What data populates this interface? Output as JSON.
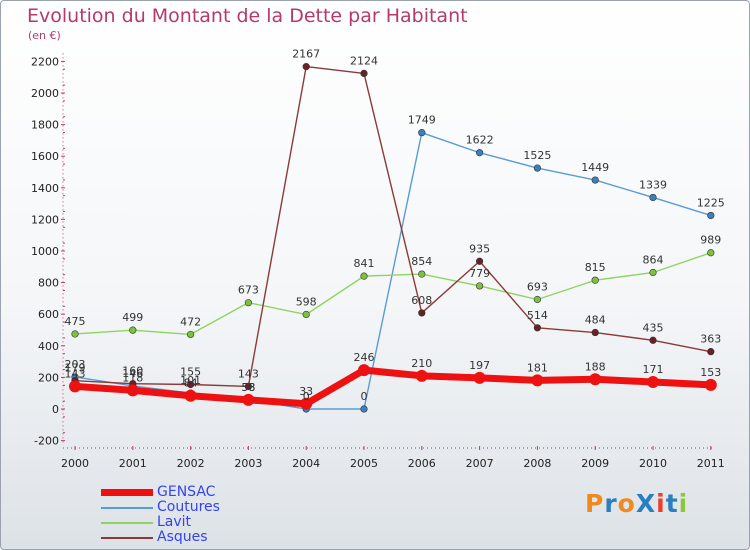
{
  "title": "Evolution du Montant de la Dette par Habitant",
  "subtitle": "(en €)",
  "logo": {
    "text": "ProXiti",
    "colors": [
      "#f08a1e",
      "#2a7fc0",
      "#f08a1e",
      "#2a7fc0",
      "#e8402a",
      "#2a7fc0",
      "#8cc63f"
    ]
  },
  "chart_data": {
    "type": "line",
    "x": [
      "2000",
      "2001",
      "2002",
      "2003",
      "2004",
      "2005",
      "2006",
      "2007",
      "2008",
      "2009",
      "2010",
      "2011"
    ],
    "ylim": [
      -200,
      2200
    ],
    "yticks": [
      -200,
      0,
      200,
      400,
      600,
      800,
      1000,
      1200,
      1400,
      1600,
      1800,
      2000,
      2200
    ],
    "grid": false,
    "legend_position": "bottom-left",
    "series": [
      {
        "name": "Coutures",
        "color": "#5b9bd5",
        "point_color": "#3a7fc0",
        "values": [
          203,
          146,
          101,
          58,
          0,
          0,
          1749,
          1622,
          1525,
          1449,
          1339,
          1225
        ],
        "labels": [
          "203",
          "146",
          "101",
          "58",
          "0",
          "0",
          "1749",
          "1622",
          "1525",
          "1449",
          "1339",
          "1225"
        ]
      },
      {
        "name": "Lavit",
        "color": "#8fd460",
        "point_color": "#7cc242",
        "values": [
          475,
          499,
          472,
          673,
          598,
          841,
          854,
          779,
          693,
          815,
          864,
          989
        ],
        "labels": [
          "475",
          "499",
          "472",
          "673",
          "598",
          "841",
          "854",
          "779",
          "693",
          "815",
          "864",
          "989"
        ]
      },
      {
        "name": "Asques",
        "color": "#8b3a3a",
        "point_color": "#6b1f26",
        "values": [
          179,
          160,
          155,
          143,
          2167,
          2124,
          608,
          935,
          514,
          484,
          435,
          363
        ],
        "labels": [
          "179",
          "160",
          "155",
          "143",
          "2167",
          "2124",
          "608",
          "935",
          "514",
          "484",
          "435",
          "363"
        ]
      },
      {
        "name": "GENSAC",
        "color": "#ee1111",
        "point_color": "#ee1111",
        "values": [
          143,
          118,
          84,
          58,
          33,
          246,
          210,
          197,
          181,
          188,
          171,
          153
        ],
        "labels": [
          "143",
          "118",
          "84",
          "58",
          "33",
          "246",
          "210",
          "197",
          "181",
          "188",
          "171",
          "153"
        ]
      }
    ],
    "legend": [
      {
        "name": "GENSAC",
        "color": "#ee1111",
        "text_color": "#3344ee"
      },
      {
        "name": "Coutures",
        "color": "#5b9bd5",
        "text_color": "#3344ee"
      },
      {
        "name": "Lavit",
        "color": "#8fd460",
        "text_color": "#3344ee"
      },
      {
        "name": "Asques",
        "color": "#8b3a3a",
        "text_color": "#3344ee"
      }
    ]
  }
}
